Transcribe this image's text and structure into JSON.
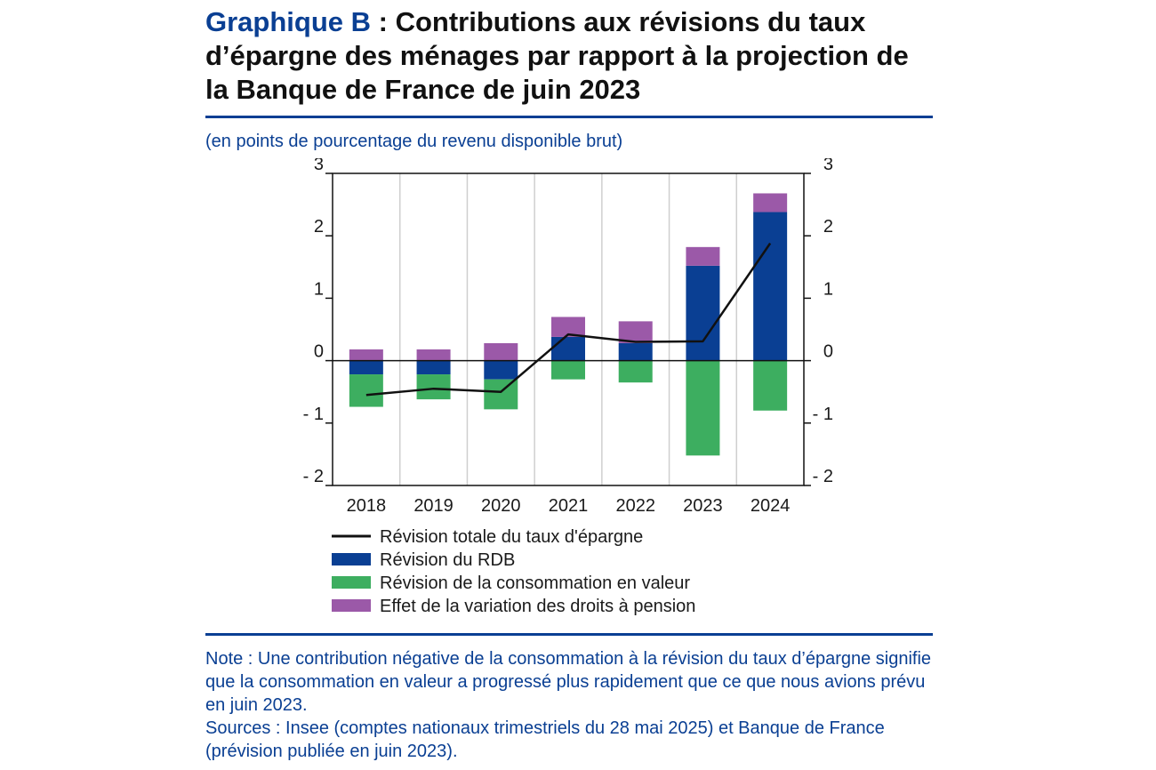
{
  "header": {
    "title_prefix": "Graphique B",
    "title_rest": " : Contributions aux révisions du taux d’épargne des ménages par rapport à la projection de la Banque de France de juin 2023",
    "subtitle": "(en points de pourcentage du revenu disponible brut)"
  },
  "chart_data": {
    "type": "bar",
    "stacked": true,
    "categories": [
      "2018",
      "2019",
      "2020",
      "2021",
      "2022",
      "2023",
      "2024"
    ],
    "series": [
      {
        "name": "Révision du RDB",
        "color": "#0a3f93",
        "values": [
          -0.22,
          -0.22,
          -0.3,
          0.38,
          0.28,
          1.52,
          2.38
        ]
      },
      {
        "name": "Révision de la consommation en valeur",
        "color": "#3dae60",
        "values": [
          -0.52,
          -0.4,
          -0.48,
          -0.3,
          -0.35,
          -1.52,
          -0.8
        ]
      },
      {
        "name": "Effet de la variation des droits à pension",
        "color": "#9b59a8",
        "values": [
          0.18,
          0.18,
          0.28,
          0.32,
          0.35,
          0.3,
          0.3
        ]
      }
    ],
    "line": {
      "name": "Révision totale du taux d'épargne",
      "color": "#111111",
      "values": [
        -0.55,
        -0.45,
        -0.5,
        0.42,
        0.3,
        0.31,
        1.88
      ]
    },
    "ylim": [
      -2,
      3
    ],
    "yticks": [
      3,
      2,
      1,
      0,
      -1,
      -2
    ],
    "ytick_labels": [
      "3",
      "2",
      "1",
      "0",
      "- 1",
      "- 2"
    ],
    "legend": [
      {
        "label": "Révision totale du taux d'épargne",
        "kind": "line",
        "color": "#111111"
      },
      {
        "label": "Révision du RDB",
        "kind": "box",
        "color": "#0a3f93"
      },
      {
        "label": "Révision de la consommation en valeur",
        "kind": "box",
        "color": "#3dae60"
      },
      {
        "label": "Effet de la variation des droits à pension",
        "kind": "box",
        "color": "#9b59a8"
      }
    ]
  },
  "notes": {
    "note": "Note : Une contribution négative de la consommation à la révision du taux d’épargne signifie que la consommation en valeur a progressé plus rapidement que ce que nous avions prévu en juin 2023.",
    "sources": "Sources : Insee (comptes nationaux trimestriels du 28 mai 2025) et Banque de France (prévision publiée en juin 2023)."
  }
}
